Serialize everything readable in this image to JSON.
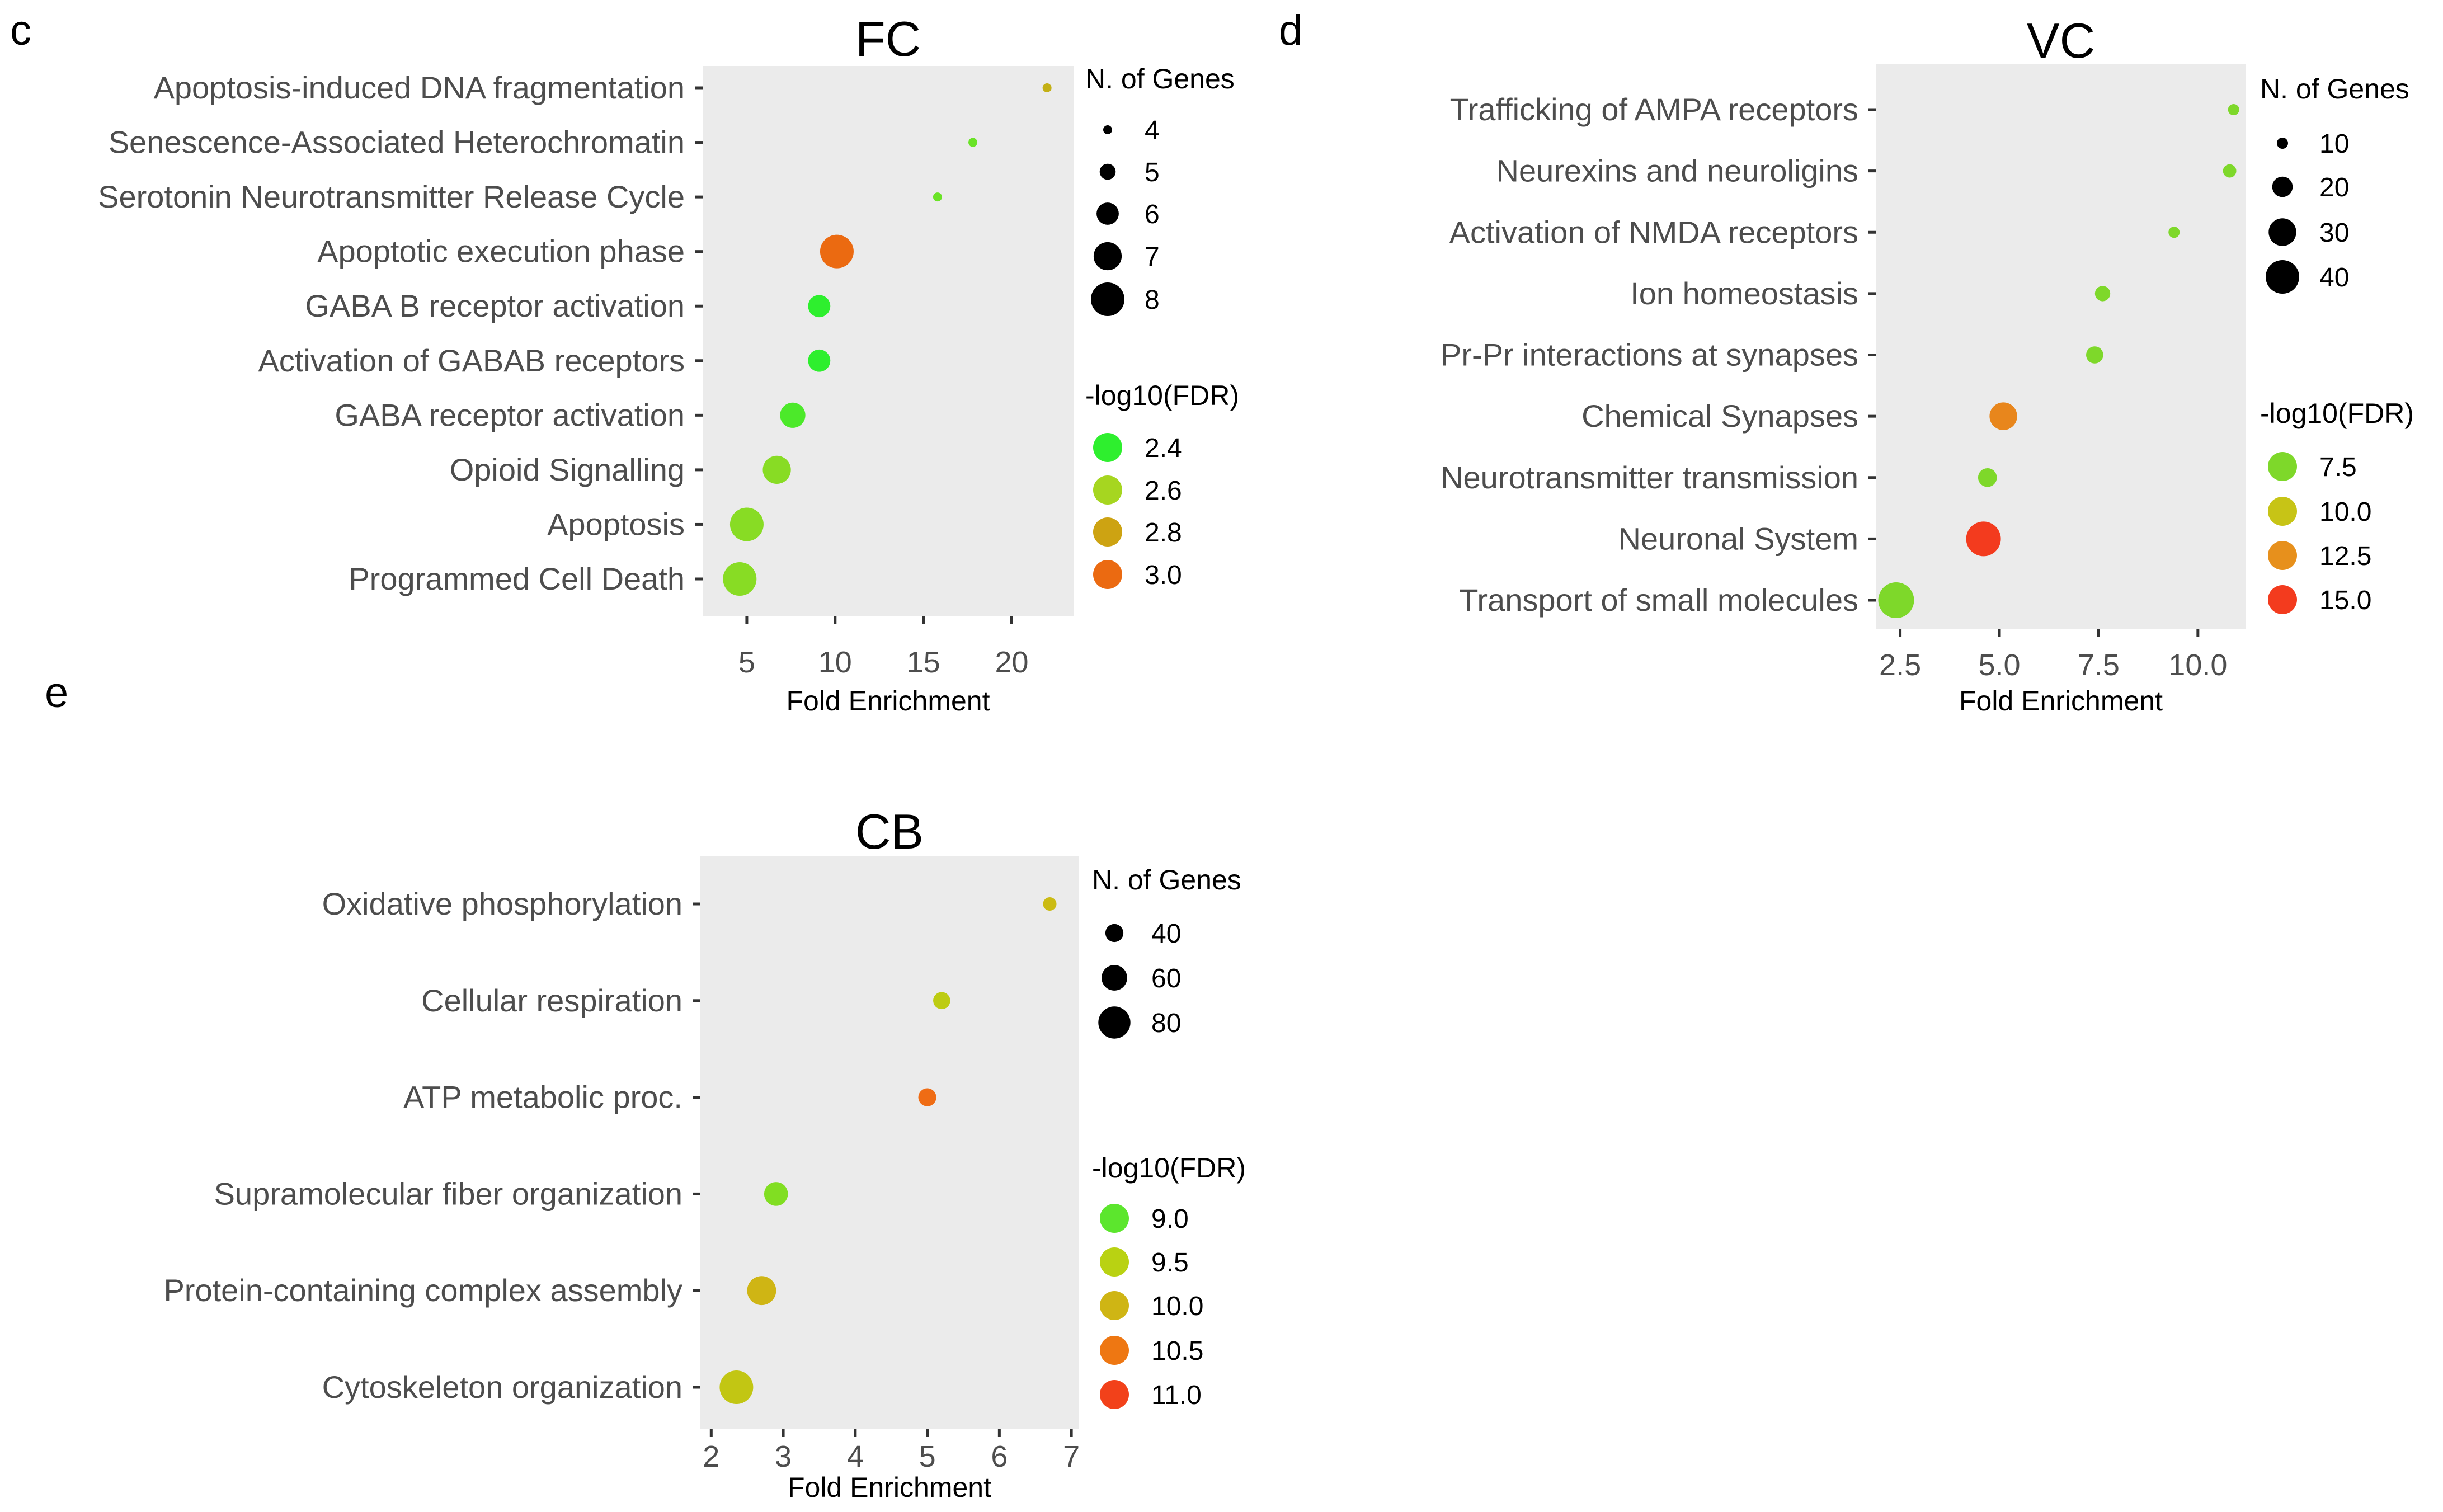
{
  "panel_labels": [
    "c",
    "d",
    "e"
  ],
  "chart_data": [
    {
      "panel": "c",
      "type": "scatter",
      "title": "FC",
      "xlabel": "Fold Enrichment",
      "ylabel": "",
      "xlim": [
        2.5,
        23.5
      ],
      "xticks": [
        5,
        10,
        15,
        20
      ],
      "xtick_labels": [
        "5",
        "10",
        "15",
        "20"
      ],
      "grid": false,
      "legend_position": "right",
      "categories": [
        "Apoptosis-induced DNA fragmentation",
        "Senescence-Associated Heterochromatin",
        "Serotonin Neurotransmitter Release Cycle",
        "Apoptotic execution phase",
        "GABA B receptor activation",
        "Activation of GABAB receptors",
        "GABA receptor activation",
        "Opioid Signalling",
        "Apoptosis",
        "Programmed Cell Death"
      ],
      "x": [
        22.0,
        17.8,
        15.8,
        10.1,
        9.1,
        9.1,
        7.6,
        6.7,
        5.0,
        4.6
      ],
      "n_genes": [
        4,
        4,
        4,
        8,
        6,
        6,
        6.5,
        7,
        8,
        8
      ],
      "log10_fdr": [
        2.75,
        2.5,
        2.5,
        3.3,
        2.35,
        2.35,
        2.45,
        2.55,
        2.55,
        2.55
      ],
      "size_legend": {
        "title": "N. of Genes",
        "values": [
          4,
          5,
          6,
          7,
          8
        ],
        "labels": [
          "4",
          "5",
          "6",
          "7",
          "8"
        ]
      },
      "color_legend": {
        "title": "-log10(FDR)",
        "values": [
          2.4,
          2.6,
          2.8,
          3.0
        ],
        "labels": [
          "2.4",
          "2.6",
          "2.8",
          "3.0"
        ],
        "colors": [
          "#2EEF2E",
          "#A6D620",
          "#CDA312",
          "#EB6A11"
        ]
      }
    },
    {
      "panel": "d",
      "type": "scatter",
      "title": "VC",
      "xlabel": "Fold Enrichment",
      "ylabel": "",
      "xlim": [
        1.9,
        11.2
      ],
      "xticks": [
        2.5,
        5.0,
        7.5,
        10.0
      ],
      "xtick_labels": [
        "2.5",
        "5.0",
        "7.5",
        "10.0"
      ],
      "grid": false,
      "legend_position": "right",
      "categories": [
        "Trafficking of AMPA receptors",
        "Neurexins and neuroligins",
        "Activation of NMDA receptors",
        "Ion homeostasis",
        "Pr-Pr interactions at synapses",
        "Chemical Synapses",
        "Neurotransmitter transmission",
        "Neuronal System",
        "Transport of small molecules"
      ],
      "x": [
        10.9,
        10.8,
        9.4,
        7.6,
        7.4,
        5.1,
        4.7,
        4.6,
        2.4
      ],
      "n_genes": [
        10,
        12,
        10,
        14,
        16,
        30,
        18,
        42,
        44
      ],
      "log10_fdr": [
        6.2,
        7.0,
        6.0,
        6.5,
        7.3,
        12.8,
        7.2,
        16.0,
        5.5
      ],
      "size_legend": {
        "title": "N. of Genes",
        "values": [
          10,
          20,
          30,
          40
        ],
        "labels": [
          "10",
          "20",
          "30",
          "40"
        ]
      },
      "color_legend": {
        "title": "-log10(FDR)",
        "values": [
          7.5,
          10.0,
          12.5,
          15.0
        ],
        "labels": [
          "7.5",
          "10.0",
          "12.5",
          "15.0"
        ],
        "colors": [
          "#7ED82A",
          "#C7C416",
          "#E7901C",
          "#F33B1E"
        ]
      }
    },
    {
      "panel": "e",
      "type": "scatter",
      "title": "CB",
      "xlabel": "Fold Enrichment",
      "ylabel": "",
      "xlim": [
        1.85,
        7.1
      ],
      "xticks": [
        2,
        3,
        4,
        5,
        6,
        7
      ],
      "xtick_labels": [
        "2",
        "3",
        "4",
        "5",
        "6",
        "7"
      ],
      "grid": false,
      "legend_position": "right",
      "categories": [
        "Oxidative phosphorylation",
        "Cellular respiration",
        "ATP metabolic proc.",
        "Supramolecular fiber organization",
        "Protein-containing complex assembly",
        "Cytoskeleton organization"
      ],
      "x": [
        6.7,
        5.2,
        5.0,
        2.9,
        2.7,
        2.35
      ],
      "n_genes": [
        30,
        38,
        40,
        55,
        70,
        85
      ],
      "log10_fdr": [
        9.9,
        9.6,
        10.6,
        9.2,
        10.0,
        9.7
      ],
      "size_legend": {
        "title": "N. of Genes",
        "values": [
          40,
          60,
          80
        ],
        "labels": [
          "40",
          "60",
          "80"
        ]
      },
      "color_legend": {
        "title": "-log10(FDR)",
        "values": [
          9.0,
          9.5,
          10.0,
          10.5,
          11.0
        ],
        "labels": [
          "9.0",
          "9.5",
          "10.0",
          "10.5",
          "11.0"
        ],
        "colors": [
          "#5CE62D",
          "#B9D212",
          "#CFB514",
          "#EE7712",
          "#F2411A"
        ]
      }
    }
  ]
}
